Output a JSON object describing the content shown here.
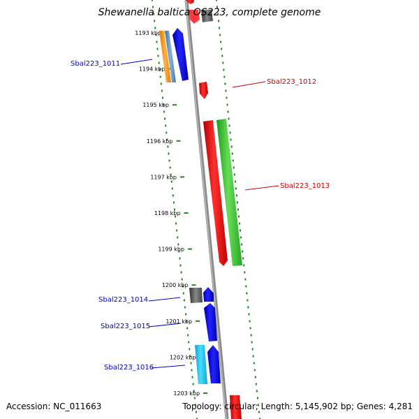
{
  "title": "Shewanella baltica OS223, complete genome",
  "footer": {
    "accession": "Accession: NC_011663",
    "summary": "Topology: circular; Length: 5,145,902 bp; Genes: 4,281"
  },
  "colors": {
    "backbone": "#8a8a8a",
    "dots": "#1a8a1a",
    "forward_label": "#0000cc",
    "reverse_label": "#cc0000"
  },
  "ticks": [
    "1193 kbp",
    "1194 kbp",
    "1195 kbp",
    "1196 kbp",
    "1197 kbp",
    "1198 kbp",
    "1199 kbp",
    "1200 kbp",
    "1201 kbp",
    "1202 kbp",
    "1203 kbp"
  ],
  "gene_labels": {
    "sbal1011": "Sbal223_1011",
    "sbal1012": "Sbal223_1012",
    "sbal1013": "Sbal223_1013",
    "sbal1014": "Sbal223_1014",
    "sbal1015": "Sbal223_1015",
    "sbal1016": "Sbal223_1016"
  }
}
